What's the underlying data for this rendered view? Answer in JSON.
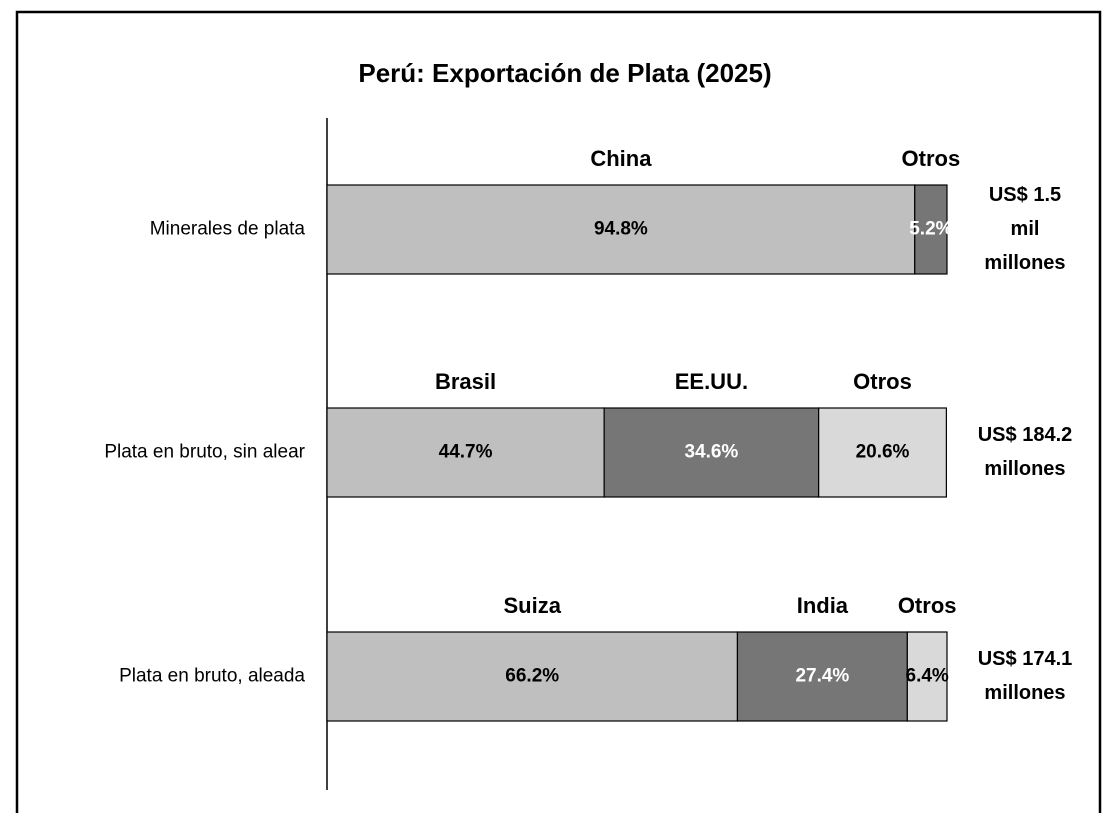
{
  "chart_data": {
    "type": "stacked-bar-horizontal",
    "title": "Perú: Exportación de Plata (2025)",
    "xlim": [
      0,
      100
    ],
    "categories": [
      "Minerales de plata",
      "Plata en bruto, sin alear",
      "Plata en bruto, aleada"
    ],
    "bars": [
      {
        "names": [
          "China",
          "Otros"
        ],
        "values": [
          94.8,
          5.2
        ],
        "value_labels": [
          "94.8%",
          "5.2%"
        ],
        "colors": [
          "#bfbfbf",
          "#767676"
        ],
        "total": [
          "US$ 1.5",
          "mil",
          "millones"
        ]
      },
      {
        "names": [
          "Brasil",
          "EE.UU.",
          "Otros"
        ],
        "values": [
          44.7,
          34.6,
          20.6
        ],
        "value_labels": [
          "44.7%",
          "34.6%",
          "20.6%"
        ],
        "colors": [
          "#bfbfbf",
          "#767676",
          "#d9d9d9"
        ],
        "total": [
          "US$ 184.2",
          "millones"
        ]
      },
      {
        "names": [
          "Suiza",
          "India",
          "Otros"
        ],
        "values": [
          66.2,
          27.4,
          6.4
        ],
        "value_labels": [
          "66.2%",
          "27.4%",
          "6.4%"
        ],
        "colors": [
          "#bfbfbf",
          "#767676",
          "#d9d9d9"
        ],
        "total": [
          "US$ 174.1",
          "millones"
        ]
      }
    ]
  }
}
